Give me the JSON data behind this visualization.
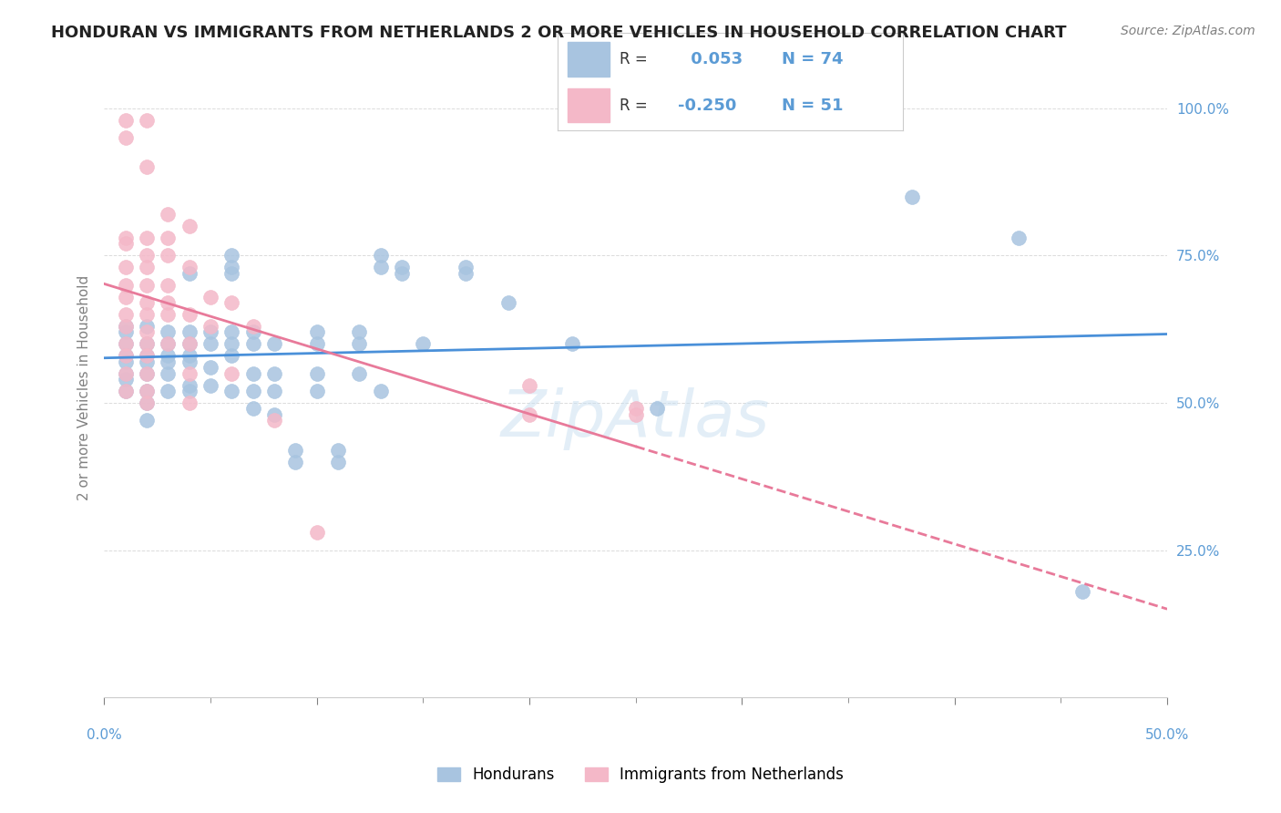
{
  "title": "HONDURAN VS IMMIGRANTS FROM NETHERLANDS 2 OR MORE VEHICLES IN HOUSEHOLD CORRELATION CHART",
  "source": "Source: ZipAtlas.com",
  "ylabel": "2 or more Vehicles in Household",
  "ylabel_ticks": [
    "25.0%",
    "50.0%",
    "75.0%",
    "100.0%"
  ],
  "ylabel_tick_vals": [
    0.25,
    0.5,
    0.75,
    1.0
  ],
  "xlim": [
    0.0,
    0.5
  ],
  "ylim": [
    0.0,
    1.05
  ],
  "blue_R": 0.053,
  "blue_N": 74,
  "pink_R": -0.25,
  "pink_N": 51,
  "blue_color": "#a8c4e0",
  "pink_color": "#f4b8c8",
  "blue_line_color": "#4a90d9",
  "pink_line_color": "#e87a9a",
  "watermark": "ZipAtlas",
  "legend_label_blue": "Hondurans",
  "legend_label_pink": "Immigrants from Netherlands",
  "blue_scatter": [
    [
      0.02,
      0.47
    ],
    [
      0.01,
      0.6
    ],
    [
      0.01,
      0.58
    ],
    [
      0.01,
      0.62
    ],
    [
      0.01,
      0.55
    ],
    [
      0.01,
      0.52
    ],
    [
      0.01,
      0.57
    ],
    [
      0.01,
      0.63
    ],
    [
      0.01,
      0.54
    ],
    [
      0.02,
      0.6
    ],
    [
      0.02,
      0.58
    ],
    [
      0.02,
      0.55
    ],
    [
      0.02,
      0.52
    ],
    [
      0.02,
      0.57
    ],
    [
      0.02,
      0.63
    ],
    [
      0.02,
      0.5
    ],
    [
      0.03,
      0.62
    ],
    [
      0.03,
      0.6
    ],
    [
      0.03,
      0.58
    ],
    [
      0.03,
      0.55
    ],
    [
      0.03,
      0.52
    ],
    [
      0.03,
      0.57
    ],
    [
      0.04,
      0.72
    ],
    [
      0.04,
      0.62
    ],
    [
      0.04,
      0.6
    ],
    [
      0.04,
      0.58
    ],
    [
      0.04,
      0.53
    ],
    [
      0.04,
      0.52
    ],
    [
      0.04,
      0.57
    ],
    [
      0.05,
      0.62
    ],
    [
      0.05,
      0.6
    ],
    [
      0.05,
      0.56
    ],
    [
      0.05,
      0.53
    ],
    [
      0.06,
      0.75
    ],
    [
      0.06,
      0.72
    ],
    [
      0.06,
      0.73
    ],
    [
      0.06,
      0.62
    ],
    [
      0.06,
      0.6
    ],
    [
      0.06,
      0.58
    ],
    [
      0.06,
      0.52
    ],
    [
      0.07,
      0.62
    ],
    [
      0.07,
      0.6
    ],
    [
      0.07,
      0.55
    ],
    [
      0.07,
      0.52
    ],
    [
      0.07,
      0.49
    ],
    [
      0.08,
      0.6
    ],
    [
      0.08,
      0.55
    ],
    [
      0.08,
      0.52
    ],
    [
      0.08,
      0.48
    ],
    [
      0.09,
      0.42
    ],
    [
      0.09,
      0.4
    ],
    [
      0.1,
      0.62
    ],
    [
      0.1,
      0.6
    ],
    [
      0.1,
      0.55
    ],
    [
      0.1,
      0.52
    ],
    [
      0.11,
      0.42
    ],
    [
      0.11,
      0.4
    ],
    [
      0.12,
      0.62
    ],
    [
      0.12,
      0.6
    ],
    [
      0.12,
      0.55
    ],
    [
      0.13,
      0.75
    ],
    [
      0.13,
      0.73
    ],
    [
      0.13,
      0.52
    ],
    [
      0.14,
      0.73
    ],
    [
      0.14,
      0.72
    ],
    [
      0.15,
      0.6
    ],
    [
      0.17,
      0.73
    ],
    [
      0.17,
      0.72
    ],
    [
      0.19,
      0.67
    ],
    [
      0.22,
      0.6
    ],
    [
      0.26,
      0.49
    ],
    [
      0.38,
      0.85
    ],
    [
      0.43,
      0.78
    ],
    [
      0.46,
      0.18
    ]
  ],
  "pink_scatter": [
    [
      0.01,
      0.98
    ],
    [
      0.01,
      0.95
    ],
    [
      0.01,
      0.78
    ],
    [
      0.01,
      0.77
    ],
    [
      0.01,
      0.73
    ],
    [
      0.01,
      0.7
    ],
    [
      0.01,
      0.68
    ],
    [
      0.01,
      0.65
    ],
    [
      0.01,
      0.63
    ],
    [
      0.01,
      0.6
    ],
    [
      0.01,
      0.58
    ],
    [
      0.01,
      0.55
    ],
    [
      0.01,
      0.52
    ],
    [
      0.02,
      0.98
    ],
    [
      0.02,
      0.9
    ],
    [
      0.02,
      0.78
    ],
    [
      0.02,
      0.75
    ],
    [
      0.02,
      0.73
    ],
    [
      0.02,
      0.7
    ],
    [
      0.02,
      0.67
    ],
    [
      0.02,
      0.65
    ],
    [
      0.02,
      0.62
    ],
    [
      0.02,
      0.6
    ],
    [
      0.02,
      0.58
    ],
    [
      0.02,
      0.55
    ],
    [
      0.02,
      0.52
    ],
    [
      0.02,
      0.5
    ],
    [
      0.03,
      0.82
    ],
    [
      0.03,
      0.78
    ],
    [
      0.03,
      0.75
    ],
    [
      0.03,
      0.7
    ],
    [
      0.03,
      0.67
    ],
    [
      0.03,
      0.65
    ],
    [
      0.03,
      0.6
    ],
    [
      0.04,
      0.8
    ],
    [
      0.04,
      0.73
    ],
    [
      0.04,
      0.65
    ],
    [
      0.04,
      0.6
    ],
    [
      0.04,
      0.55
    ],
    [
      0.04,
      0.5
    ],
    [
      0.05,
      0.68
    ],
    [
      0.05,
      0.63
    ],
    [
      0.06,
      0.67
    ],
    [
      0.06,
      0.55
    ],
    [
      0.07,
      0.63
    ],
    [
      0.08,
      0.47
    ],
    [
      0.1,
      0.28
    ],
    [
      0.2,
      0.53
    ],
    [
      0.2,
      0.48
    ],
    [
      0.25,
      0.49
    ],
    [
      0.25,
      0.48
    ]
  ]
}
